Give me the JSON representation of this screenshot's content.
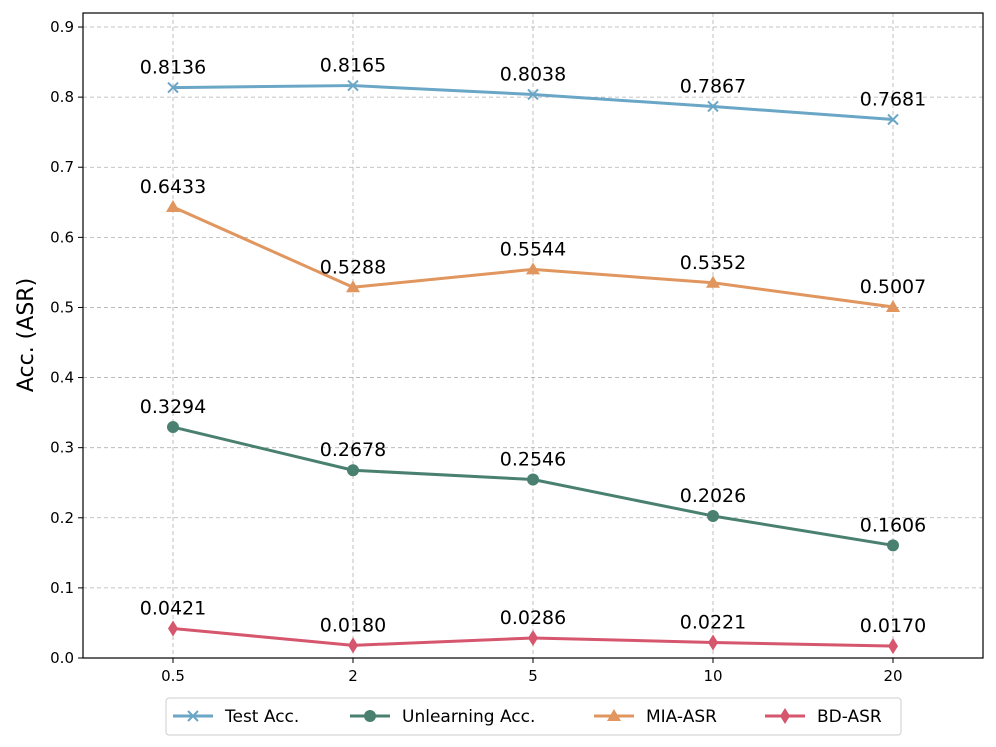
{
  "chart_data": {
    "type": "line",
    "title": "",
    "xlabel": "",
    "ylabel": "Acc. (ASR)",
    "categories": [
      "0.5",
      "2",
      "5",
      "10",
      "20"
    ],
    "ylim": [
      0,
      0.92
    ],
    "yticks": [
      "0.0",
      "0.1",
      "0.2",
      "0.3",
      "0.4",
      "0.5",
      "0.6",
      "0.7",
      "0.8",
      "0.9"
    ],
    "grid": true,
    "legend_position": "bottom-center-outside",
    "series": [
      {
        "name": "Test Acc.",
        "color": "#6aa6c6",
        "marker": "x",
        "values": [
          0.8136,
          0.8165,
          0.8038,
          0.7867,
          0.7681
        ],
        "labels": [
          "0.8136",
          "0.8165",
          "0.8038",
          "0.7867",
          "0.7681"
        ]
      },
      {
        "name": "Unlearning Acc.",
        "color": "#4a8070",
        "marker": "circle",
        "values": [
          0.3294,
          0.2678,
          0.2546,
          0.2026,
          0.1606
        ],
        "labels": [
          "0.3294",
          "0.2678",
          "0.2546",
          "0.2026",
          "0.1606"
        ]
      },
      {
        "name": "MIA-ASR",
        "color": "#e0965e",
        "marker": "triangle",
        "values": [
          0.6433,
          0.5288,
          0.5544,
          0.5352,
          0.5007
        ],
        "labels": [
          "0.6433",
          "0.5288",
          "0.5544",
          "0.5352",
          "0.5007"
        ]
      },
      {
        "name": "BD-ASR",
        "color": "#d6566e",
        "marker": "diamond",
        "values": [
          0.0421,
          0.018,
          0.0286,
          0.0221,
          0.017
        ],
        "labels": [
          "0.0421",
          "0.0180",
          "0.0286",
          "0.0221",
          "0.0170"
        ]
      }
    ]
  }
}
